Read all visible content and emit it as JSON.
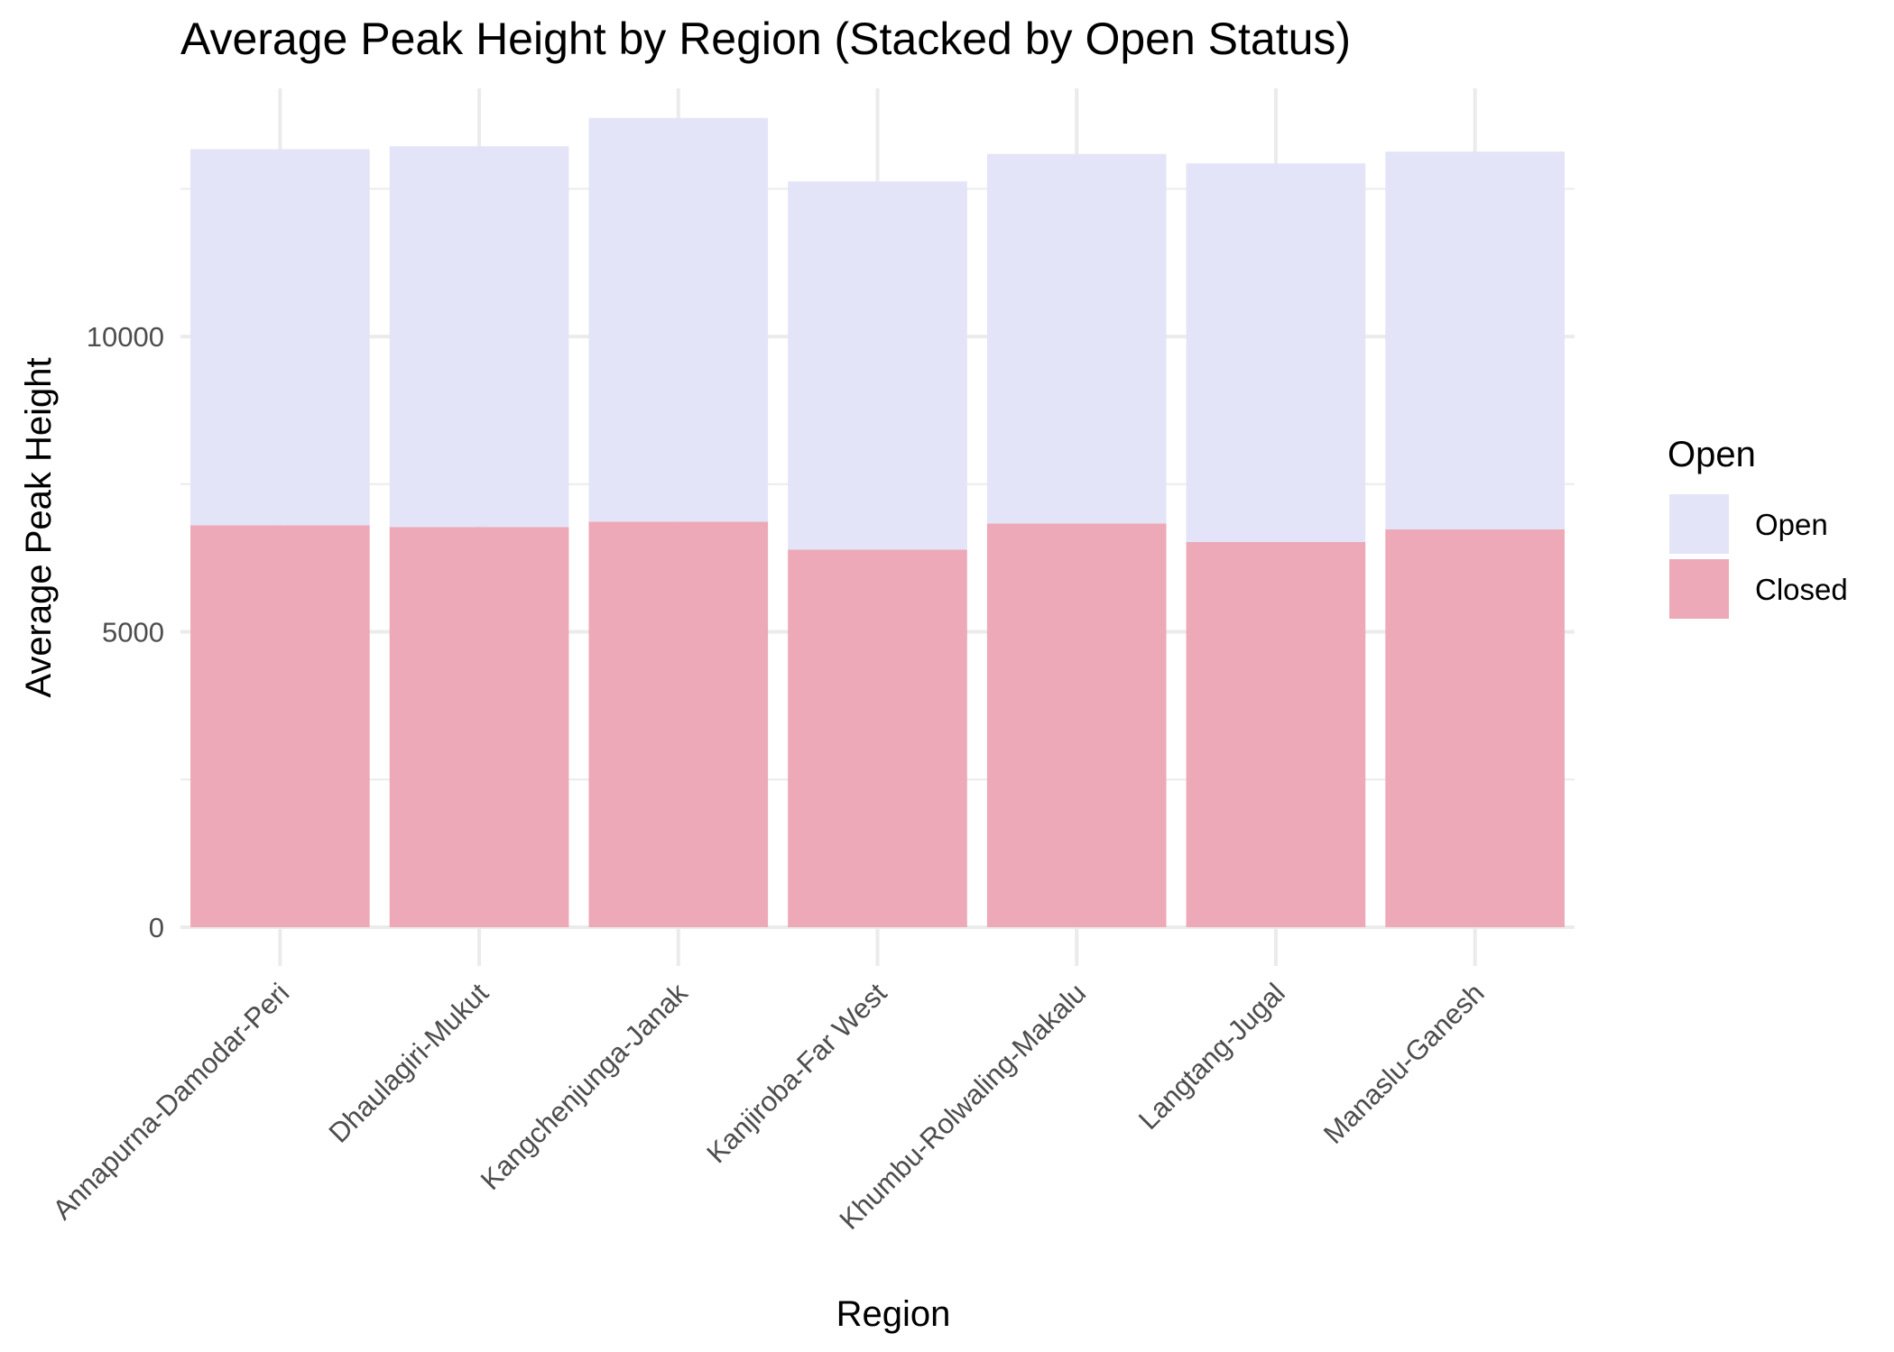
{
  "chart_data": {
    "type": "bar",
    "stacked": true,
    "title": "Average Peak Height by Region (Stacked by Open Status)",
    "xlabel": "Region",
    "ylabel": "Average Peak Height",
    "categories": [
      "Annapurna-Damodar-Peri",
      "Dhaulagiri-Mukut",
      "Kangchenjunga-Janak",
      "Kanjiroba-Far West",
      "Khumbu-Rolwaling-Makalu",
      "Langtang-Jugal",
      "Manaslu-Ganesh"
    ],
    "series": [
      {
        "name": "Closed",
        "color": "#eda9b7",
        "values": [
          6805,
          6775,
          6865,
          6390,
          6835,
          6520,
          6735
        ]
      },
      {
        "name": "Open",
        "color": "#e3e4f8",
        "values": [
          6365,
          6445,
          6835,
          6235,
          6255,
          6410,
          6395
        ]
      }
    ],
    "y_ticks": [
      0,
      5000,
      10000
    ],
    "ylim": [
      0,
      14200
    ],
    "grid": true,
    "legend": {
      "title": "Open",
      "position": "right",
      "entries": [
        {
          "label": "Open",
          "color": "#e3e4f8"
        },
        {
          "label": "Closed",
          "color": "#eda9b7"
        }
      ]
    }
  }
}
